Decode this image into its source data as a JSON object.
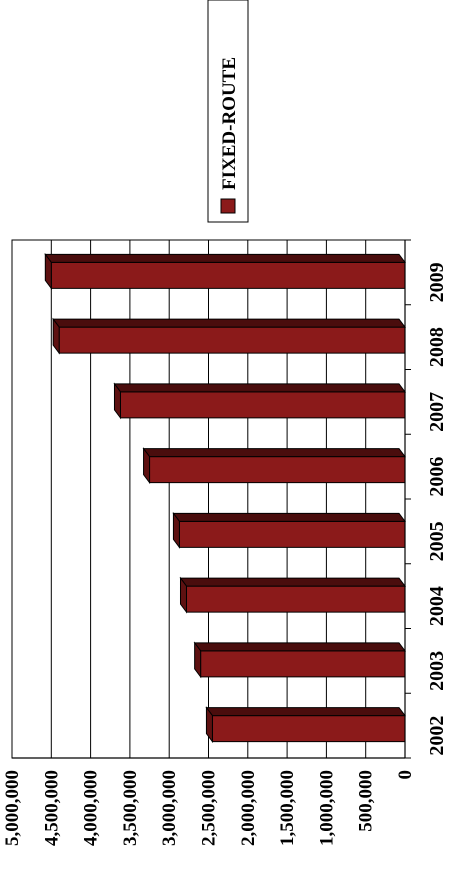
{
  "chart_data": {
    "type": "bar",
    "orientation": "vertical-bars, page rotated 90 degrees clockwise",
    "categories": [
      "2002",
      "2003",
      "2004",
      "2005",
      "2006",
      "2007",
      "2008",
      "2009"
    ],
    "series": [
      {
        "name": "FIXED-ROUTE",
        "values": [
          2450000,
          2600000,
          2780000,
          2870000,
          3250000,
          3620000,
          4400000,
          4500000
        ]
      }
    ],
    "ylim": [
      0,
      5000000
    ],
    "yticks": [
      "0",
      "500,000",
      "1,000,000",
      "1,500,000",
      "2,000,000",
      "2,500,000",
      "3,000,000",
      "3,500,000",
      "4,000,000",
      "4,500,000",
      "5,000,000"
    ],
    "title": "",
    "xlabel": "",
    "ylabel": "",
    "grid": true,
    "legend_position": "top-right",
    "colors": {
      "bar_front": "#8b1a1a",
      "bar_top": "#4a0d0d",
      "bar_side": "#5e1111",
      "grid": "#000000"
    }
  }
}
